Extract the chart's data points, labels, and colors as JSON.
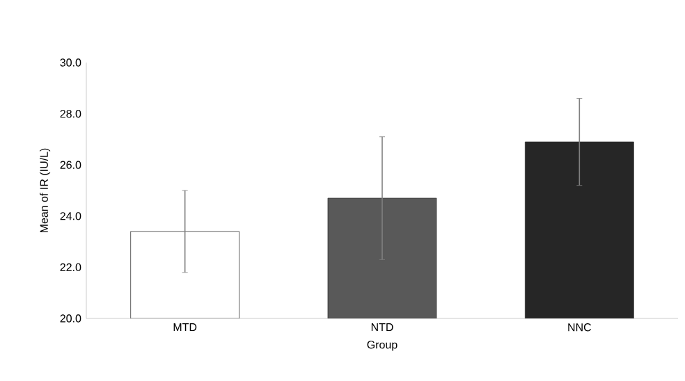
{
  "chart_data": {
    "type": "bar",
    "xlabel": "Group",
    "ylabel": "Mean of IR (IU/L)",
    "categories": [
      "MTD",
      "NTD",
      "NNC"
    ],
    "values": [
      23.4,
      24.7,
      26.9
    ],
    "errors": [
      1.6,
      2.4,
      1.7
    ],
    "colors": [
      "#ffffff",
      "#595959",
      "#262626"
    ],
    "ylim": [
      20,
      30
    ],
    "yticks": [
      {
        "value": 20,
        "label": "20.0"
      },
      {
        "value": 22,
        "label": "22.0"
      },
      {
        "value": 24,
        "label": "24.0"
      },
      {
        "value": 26,
        "label": "26.0"
      },
      {
        "value": 28,
        "label": "28.0"
      },
      {
        "value": 30,
        "label": "30.0"
      }
    ]
  }
}
